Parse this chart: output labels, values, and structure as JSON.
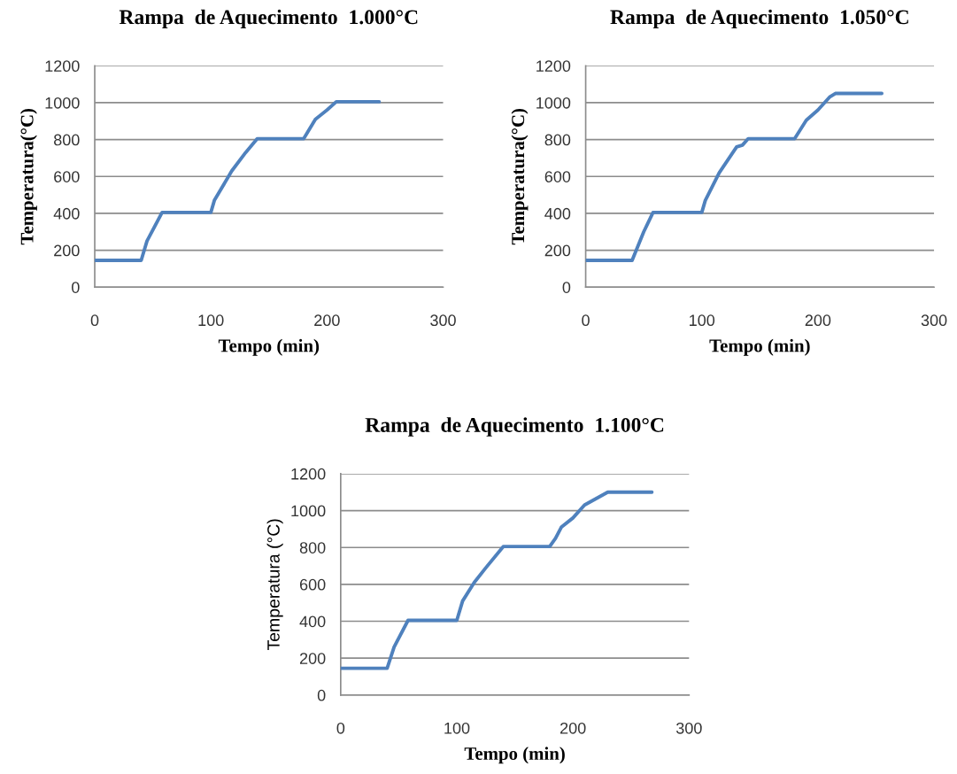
{
  "chart_data": [
    {
      "type": "line",
      "title": "Rampa  de Aquecimento  1.000°C",
      "xlabel": "Tempo (min)",
      "ylabel": "Temperatura(°C)",
      "xlim": [
        0,
        300
      ],
      "xticks": [
        0,
        100,
        200,
        300
      ],
      "ylim": [
        0,
        1200
      ],
      "yticks": [
        0,
        200,
        400,
        600,
        800,
        1000,
        1200
      ],
      "grid": "y",
      "legend": false,
      "marker": "none",
      "line_style": "solid",
      "series": [
        {
          "color": "#4f81bd",
          "x": [
            0,
            40,
            45,
            58,
            100,
            103,
            118,
            130,
            140,
            180,
            190,
            200,
            208,
            245
          ],
          "values": [
            145,
            145,
            250,
            405,
            405,
            470,
            630,
            730,
            805,
            805,
            910,
            960,
            1005,
            1005
          ]
        }
      ]
    },
    {
      "type": "line",
      "title": "Rampa  de Aquecimento  1.050°C",
      "xlabel": "Tempo (min)",
      "ylabel": "Temperatura(°C)",
      "xlim": [
        0,
        300
      ],
      "xticks": [
        0,
        100,
        200,
        300
      ],
      "ylim": [
        0,
        1200
      ],
      "yticks": [
        0,
        200,
        400,
        600,
        800,
        1000,
        1200
      ],
      "grid": "y",
      "legend": false,
      "marker": "none",
      "line_style": "solid",
      "series": [
        {
          "color": "#4f81bd",
          "x": [
            0,
            40,
            50,
            58,
            100,
            103,
            115,
            130,
            135,
            140,
            180,
            190,
            200,
            210,
            215,
            255
          ],
          "values": [
            145,
            145,
            300,
            405,
            405,
            470,
            620,
            760,
            770,
            805,
            805,
            905,
            960,
            1030,
            1050,
            1050
          ]
        }
      ]
    },
    {
      "type": "line",
      "title": "Rampa  de Aquecimento  1.100°C",
      "xlabel": "Tempo (min)",
      "ylabel": "Temperatura (°C)",
      "xlim": [
        0,
        300
      ],
      "xticks": [
        0,
        100,
        200,
        300
      ],
      "ylim": [
        0,
        1200
      ],
      "yticks": [
        0,
        200,
        400,
        600,
        800,
        1000,
        1200
      ],
      "grid": "y",
      "legend": false,
      "marker": "none",
      "line_style": "solid",
      "series": [
        {
          "color": "#4f81bd",
          "x": [
            0,
            40,
            46,
            58,
            100,
            105,
            115,
            125,
            140,
            180,
            185,
            190,
            200,
            210,
            230,
            268
          ],
          "values": [
            145,
            145,
            260,
            405,
            405,
            510,
            610,
            690,
            805,
            805,
            850,
            910,
            960,
            1030,
            1100,
            1100
          ]
        }
      ]
    }
  ]
}
